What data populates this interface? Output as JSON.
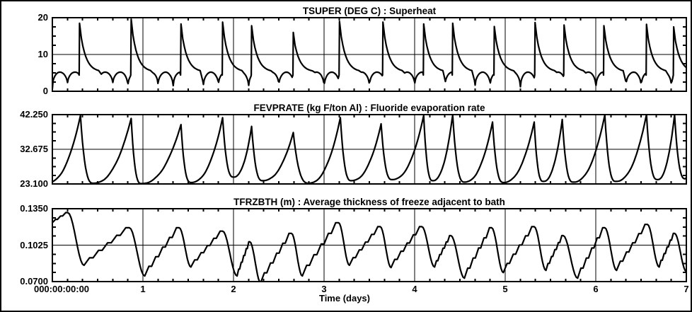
{
  "window": {
    "background": "#ffffff",
    "border_color": "#000000",
    "line_color": "#000000"
  },
  "x_axis": {
    "label": "Time (days)",
    "origin_label": "000:00:00:00",
    "day_ticks": [
      "1",
      "2",
      "3",
      "4",
      "5",
      "6",
      "7"
    ],
    "minor_ticks_per_day": 6,
    "xlim": [
      0,
      7
    ]
  },
  "chart_data": [
    {
      "type": "line",
      "title": "TSUPER (DEG C) : Superheat",
      "ylim": [
        0,
        20
      ],
      "yticks": [
        {
          "v": 20,
          "label": "20"
        },
        {
          "v": 10,
          "label": "10"
        },
        {
          "v": 0,
          "label": "0"
        }
      ],
      "grid": "major-on",
      "pattern": {
        "kind": "spiky-baseline",
        "baseline": 5.2,
        "dip_low": 1.0,
        "dip_period_days": 0.1667,
        "spikes": [
          [
            0.3,
            18.5
          ],
          [
            0.87,
            19.6
          ],
          [
            1.42,
            18.3
          ],
          [
            1.88,
            18.8
          ],
          [
            2.2,
            17.8
          ],
          [
            2.66,
            16.0
          ],
          [
            3.17,
            19.0
          ],
          [
            3.65,
            18.8
          ],
          [
            4.1,
            18.3
          ],
          [
            4.42,
            18.5
          ],
          [
            4.88,
            17.6
          ],
          [
            5.33,
            18.7
          ],
          [
            5.65,
            18.0
          ],
          [
            6.09,
            17.8
          ],
          [
            6.56,
            18.2
          ],
          [
            6.86,
            17.5
          ]
        ]
      }
    },
    {
      "type": "line",
      "title": "FEVPRATE (kg F/ton Al) : Fluoride evaporation rate",
      "ylim": [
        23.1,
        42.25
      ],
      "yticks": [
        {
          "v": 42.25,
          "label": "42.250"
        },
        {
          "v": 32.675,
          "label": "32.675"
        },
        {
          "v": 23.1,
          "label": "23.100"
        }
      ],
      "grid": "major-on",
      "pattern": {
        "kind": "sawtooth-rise",
        "troughs": [
          [
            -0.06,
            23.4
          ],
          [
            0.45,
            23.3
          ],
          [
            0.98,
            23.2
          ],
          [
            1.53,
            23.5
          ],
          [
            2.0,
            25.0
          ],
          [
            2.32,
            24.0
          ],
          [
            2.83,
            23.3
          ],
          [
            3.3,
            24.0
          ],
          [
            3.75,
            24.3
          ],
          [
            4.2,
            24.0
          ],
          [
            4.55,
            23.6
          ],
          [
            4.98,
            23.5
          ],
          [
            5.42,
            23.8
          ],
          [
            5.75,
            23.6
          ],
          [
            6.22,
            23.8
          ],
          [
            6.68,
            24.3
          ],
          [
            6.99,
            24.5
          ]
        ],
        "peaks": [
          [
            0.31,
            42.0
          ],
          [
            0.87,
            41.2
          ],
          [
            1.42,
            39.5
          ],
          [
            1.88,
            41.4
          ],
          [
            2.2,
            39.0
          ],
          [
            2.66,
            37.3
          ],
          [
            3.18,
            41.4
          ],
          [
            3.63,
            39.7
          ],
          [
            4.1,
            42.0
          ],
          [
            4.42,
            42.2
          ],
          [
            4.86,
            40.2
          ],
          [
            5.32,
            40.2
          ],
          [
            5.63,
            40.9
          ],
          [
            6.1,
            42.2
          ],
          [
            6.56,
            42.3
          ],
          [
            6.87,
            42.2
          ]
        ],
        "end": [
          7.02,
          25.2
        ]
      }
    },
    {
      "type": "line",
      "title": "TFRZBTH (m) : Average thickness of freeze adjacent to bath",
      "ylim": [
        0.07,
        0.135
      ],
      "yticks": [
        {
          "v": 0.135,
          "label": "0.1350"
        },
        {
          "v": 0.1025,
          "label": "0.1025"
        },
        {
          "v": 0.07,
          "label": "0.0700"
        }
      ],
      "grid": "major-on",
      "pattern": {
        "kind": "stepped-sawtooth",
        "start": [
          0,
          0.1225
        ],
        "peaks": [
          [
            0.17,
            0.1315
          ],
          [
            0.85,
            0.118
          ],
          [
            1.4,
            0.118
          ],
          [
            1.88,
            0.115
          ],
          [
            2.18,
            0.1055
          ],
          [
            2.64,
            0.113
          ],
          [
            3.16,
            0.1225
          ],
          [
            3.62,
            0.119
          ],
          [
            4.08,
            0.119
          ],
          [
            4.4,
            0.111
          ],
          [
            4.85,
            0.118
          ],
          [
            5.32,
            0.119
          ],
          [
            5.64,
            0.111
          ],
          [
            6.1,
            0.118
          ],
          [
            6.57,
            0.121
          ],
          [
            6.87,
            0.113
          ]
        ],
        "troughs": [
          [
            0.35,
            0.0845
          ],
          [
            1.02,
            0.075
          ],
          [
            1.53,
            0.083
          ],
          [
            2.04,
            0.075
          ],
          [
            2.3,
            0.069
          ],
          [
            2.76,
            0.075
          ],
          [
            3.28,
            0.0845
          ],
          [
            3.74,
            0.0825
          ],
          [
            4.22,
            0.083
          ],
          [
            4.55,
            0.073
          ],
          [
            4.98,
            0.078
          ],
          [
            5.45,
            0.08
          ],
          [
            5.8,
            0.073
          ],
          [
            6.23,
            0.08
          ],
          [
            6.7,
            0.083
          ],
          [
            7.0,
            0.079
          ]
        ],
        "end": [
          7.02,
          0.08
        ]
      }
    }
  ]
}
